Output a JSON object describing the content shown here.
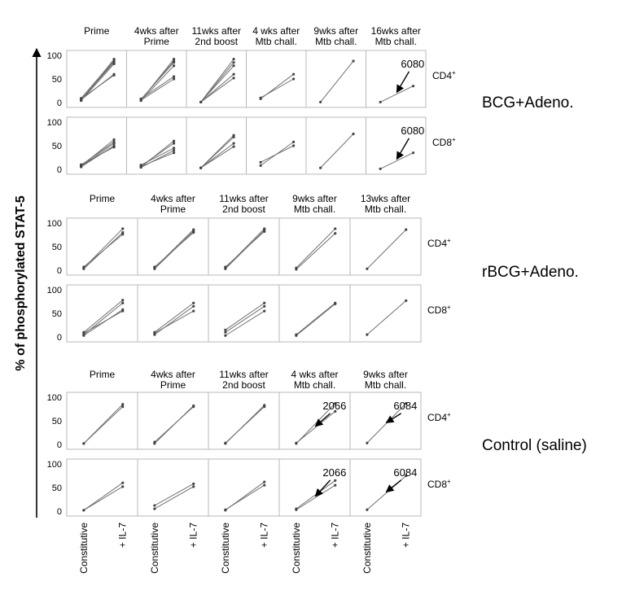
{
  "figure": {
    "y_axis_label": "% of phosphorylated STAT-5",
    "x_tick_labels": [
      "Constitutive",
      "+ IL-7"
    ],
    "y_ticks": [
      0,
      50,
      100
    ]
  },
  "chart_data": [
    {
      "type": "line",
      "group": "BCG+Adeno.",
      "ylim": [
        0,
        100
      ],
      "panels": [
        {
          "title": [
            "Prime",
            ""
          ],
          "rows": {
            "CD4+": {
              "lines": [
                [
                  5,
                  88
                ],
                [
                  7,
                  85
                ],
                [
                  9,
                  90
                ],
                [
                  4,
                  82
                ],
                [
                  6,
                  60
                ],
                [
                  8,
                  58
                ],
                [
                  5,
                  92
                ]
              ]
            },
            "CD8+": {
              "lines": [
                [
                  7,
                  63
                ],
                [
                  9,
                  58
                ],
                [
                  5,
                  50
                ],
                [
                  8,
                  48
                ],
                [
                  10,
                  47
                ],
                [
                  6,
                  55
                ]
              ]
            }
          }
        },
        {
          "title": [
            "4wks after",
            "Prime"
          ],
          "rows": {
            "CD4+": {
              "lines": [
                [
                  5,
                  92
                ],
                [
                  7,
                  85
                ],
                [
                  4,
                  78
                ],
                [
                  8,
                  55
                ],
                [
                  6,
                  88
                ],
                [
                  5,
                  50
                ]
              ]
            },
            "CD8+": {
              "lines": [
                [
                  5,
                  60
                ],
                [
                  7,
                  55
                ],
                [
                  9,
                  45
                ],
                [
                  4,
                  40
                ],
                [
                  6,
                  35
                ]
              ]
            }
          }
        },
        {
          "title": [
            "11wks after",
            "2nd boost"
          ],
          "rows": {
            "CD4+": {
              "lines": [
                [
                  1,
                  92
                ],
                [
                  1,
                  85
                ],
                [
                  1,
                  78
                ],
                [
                  1,
                  60
                ],
                [
                  1,
                  52
                ]
              ]
            },
            "CD8+": {
              "lines": [
                [
                  3,
                  72
                ],
                [
                  3,
                  68
                ],
                [
                  3,
                  55
                ],
                [
                  3,
                  48
                ]
              ]
            }
          }
        },
        {
          "title": [
            "4 wks after",
            "Mtb chall."
          ],
          "rows": {
            "CD4+": {
              "lines": [
                [
                  8,
                  60
                ],
                [
                  10,
                  50
                ]
              ]
            },
            "CD8+": {
              "lines": [
                [
                  8,
                  58
                ],
                [
                  15,
                  50
                ]
              ]
            }
          }
        },
        {
          "title": [
            "9wks after",
            "Mtb chall."
          ],
          "rows": {
            "CD4+": {
              "lines": [
                [
                  1,
                  88
                ]
              ]
            },
            "CD8+": {
              "lines": [
                [
                  3,
                  75
                ]
              ]
            }
          }
        },
        {
          "title": [
            "16wks after",
            "Mtb chall."
          ],
          "rows": {
            "CD4+": {
              "lines": [
                [
                  1,
                  35
                ]
              ],
              "annotation": "6080"
            },
            "CD8+": {
              "lines": [
                [
                  1,
                  35
                ]
              ],
              "annotation": "6080"
            }
          }
        }
      ]
    },
    {
      "type": "line",
      "group": "rBCG+Adeno.",
      "ylim": [
        0,
        100
      ],
      "panels": [
        {
          "title": [
            "Prime",
            ""
          ],
          "rows": {
            "CD4+": {
              "lines": [
                [
                  5,
                  88
                ],
                [
                  3,
                  80
                ],
                [
                  7,
                  76
                ]
              ]
            },
            "CD8+": {
              "lines": [
                [
                  10,
                  78
                ],
                [
                  5,
                  72
                ],
                [
                  3,
                  58
                ],
                [
                  8,
                  55
                ]
              ]
            }
          }
        },
        {
          "title": [
            "4wks after",
            "Prime"
          ],
          "rows": {
            "CD4+": {
              "lines": [
                [
                  5,
                  86
                ],
                [
                  3,
                  83
                ],
                [
                  7,
                  80
                ]
              ]
            },
            "CD8+": {
              "lines": [
                [
                  10,
                  72
                ],
                [
                  5,
                  65
                ],
                [
                  8,
                  55
                ]
              ]
            }
          }
        },
        {
          "title": [
            "11wks after",
            "2nd boost"
          ],
          "rows": {
            "CD4+": {
              "lines": [
                [
                  5,
                  88
                ],
                [
                  3,
                  85
                ],
                [
                  7,
                  82
                ]
              ]
            },
            "CD8+": {
              "lines": [
                [
                  15,
                  72
                ],
                [
                  10,
                  65
                ],
                [
                  3,
                  55
                ]
              ]
            }
          }
        },
        {
          "title": [
            "9wks after",
            "Mtb chall."
          ],
          "rows": {
            "CD4+": {
              "lines": [
                [
                  5,
                  88
                ],
                [
                  2,
                  78
                ]
              ]
            },
            "CD8+": {
              "lines": [
                [
                  5,
                  72
                ],
                [
                  3,
                  70
                ]
              ]
            }
          }
        },
        {
          "title": [
            "13wks after",
            "Mtb chall."
          ],
          "rows": {
            "CD4+": {
              "lines": [
                [
                  3,
                  86
                ]
              ]
            },
            "CD8+": {
              "lines": [
                [
                  5,
                  77
                ]
              ]
            }
          }
        }
      ]
    },
    {
      "type": "line",
      "group": "Control (saline)",
      "ylim": [
        0,
        100
      ],
      "panels": [
        {
          "title": [
            "Prime",
            ""
          ],
          "rows": {
            "CD4+": {
              "lines": [
                [
                  2,
                  85
                ],
                [
                  2,
                  80
                ]
              ]
            },
            "CD8+": {
              "lines": [
                [
                  2,
                  60
                ],
                [
                  2,
                  52
                ]
              ]
            }
          }
        },
        {
          "title": [
            "4wks after",
            "Prime"
          ],
          "rows": {
            "CD4+": {
              "lines": [
                [
                  2,
                  82
                ],
                [
                  5,
                  80
                ]
              ]
            },
            "CD8+": {
              "lines": [
                [
                  12,
                  58
                ],
                [
                  5,
                  52
                ]
              ]
            }
          }
        },
        {
          "title": [
            "11wks after",
            "2nd boost"
          ],
          "rows": {
            "CD4+": {
              "lines": [
                [
                  2,
                  83
                ],
                [
                  3,
                  80
                ]
              ]
            },
            "CD8+": {
              "lines": [
                [
                  2,
                  62
                ],
                [
                  3,
                  55
                ]
              ]
            }
          }
        },
        {
          "title": [
            "4 wks after",
            "Mtb chall."
          ],
          "rows": {
            "CD4+": {
              "lines": [
                [
                  2,
                  87
                ],
                [
                  3,
                  70
                ]
              ],
              "annotation": "2066"
            },
            "CD8+": {
              "lines": [
                [
                  5,
                  65
                ],
                [
                  3,
                  55
                ]
              ],
              "annotation": "2066"
            }
          }
        },
        {
          "title": [
            "9wks after",
            "Mtb chall."
          ],
          "rows": {
            "CD4+": {
              "lines": [
                [
                  3,
                  87
                ]
              ],
              "annotation": "6084"
            },
            "CD8+": {
              "lines": [
                [
                  3,
                  75
                ]
              ],
              "annotation": "6084"
            }
          }
        }
      ]
    }
  ]
}
